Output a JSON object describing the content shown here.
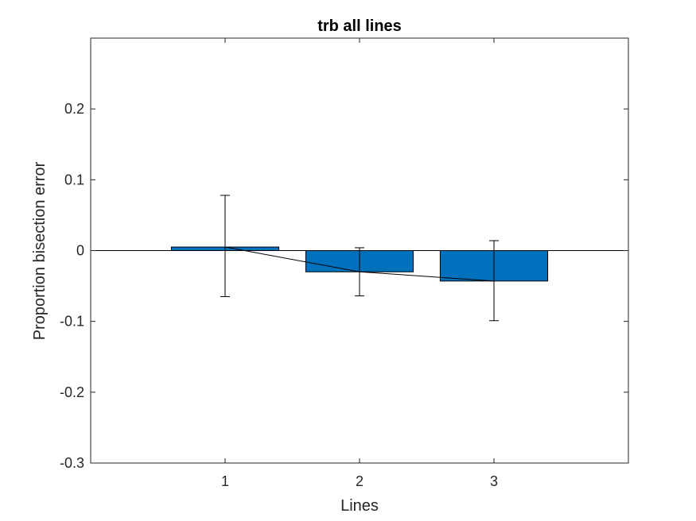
{
  "chart_data": {
    "type": "bar",
    "title": "trb all lines",
    "xlabel": "Lines",
    "ylabel": "Proportion bisection error",
    "categories": [
      "1",
      "2",
      "3"
    ],
    "values": [
      0.005,
      -0.03,
      -0.043
    ],
    "error_upper": [
      0.078,
      0.004,
      0.014
    ],
    "error_lower": [
      -0.065,
      -0.064,
      -0.099
    ],
    "xlim": [
      0,
      4
    ],
    "ylim": [
      -0.3,
      0.3
    ],
    "yticks": [
      -0.3,
      -0.2,
      -0.1,
      0,
      0.1,
      0.2
    ],
    "ytick_labels": [
      "-0.3",
      "-0.2",
      "-0.1",
      "0",
      "0.1",
      "0.2"
    ],
    "bar_color": "#0072BD",
    "connecting_line": true,
    "zero_line": true,
    "grid": false
  }
}
